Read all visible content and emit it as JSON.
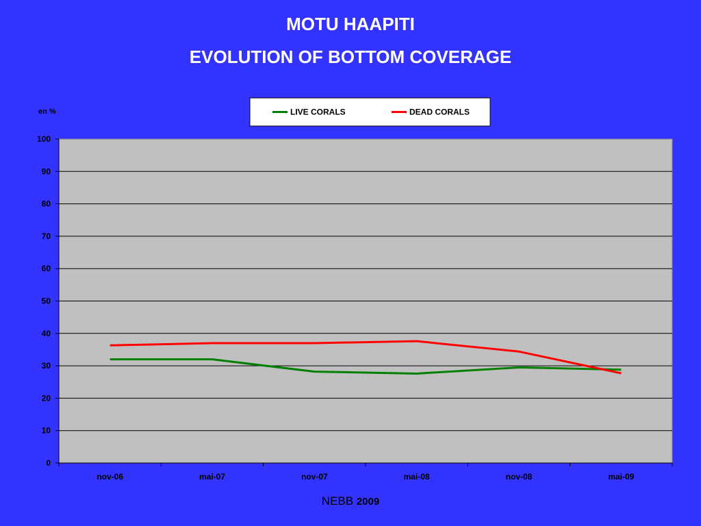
{
  "slide": {
    "title": "MOTU HAAPITI",
    "subtitle": "EVOLUTION OF BOTTOM COVERAGE",
    "footer_name": "NEBB",
    "footer_year": "2009"
  },
  "chart_data": {
    "type": "line",
    "title": "",
    "xlabel": "",
    "ylabel": "en %",
    "categories": [
      "nov-06",
      "mai-07",
      "nov-07",
      "mai-08",
      "nov-08",
      "mai-09"
    ],
    "ylim": [
      0,
      100
    ],
    "yticks": [
      0,
      10,
      20,
      30,
      40,
      50,
      60,
      70,
      80,
      90,
      100
    ],
    "grid": true,
    "legend_position": "top",
    "series": [
      {
        "name": "LIVE CORALS",
        "color": "#008000",
        "values": [
          32,
          32,
          28.2,
          27.6,
          29.5,
          28.8
        ]
      },
      {
        "name": "DEAD CORALS",
        "color": "#ff0000",
        "values": [
          36.3,
          37,
          37,
          37.6,
          34.4,
          27.7
        ]
      }
    ],
    "plot_background": "#c0c0c0"
  }
}
